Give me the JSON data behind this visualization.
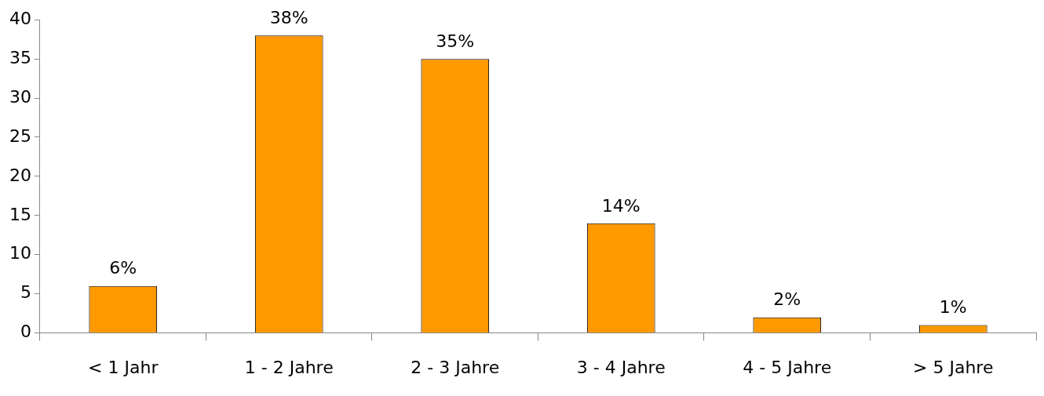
{
  "chart_data": {
    "type": "bar",
    "categories": [
      "< 1 Jahr",
      "1 - 2 Jahre",
      "2 - 3 Jahre",
      "3 - 4 Jahre",
      "4 - 5 Jahre",
      "> 5 Jahre"
    ],
    "values": [
      6,
      38,
      35,
      14,
      2,
      1
    ],
    "value_labels": [
      "6%",
      "38%",
      "35%",
      "14%",
      "2%",
      "1%"
    ],
    "color": "#ff9900",
    "ylim": [
      0,
      40
    ],
    "yticks": [
      0,
      5,
      10,
      15,
      20,
      25,
      30,
      35,
      40
    ],
    "grid": false,
    "legend": false
  }
}
